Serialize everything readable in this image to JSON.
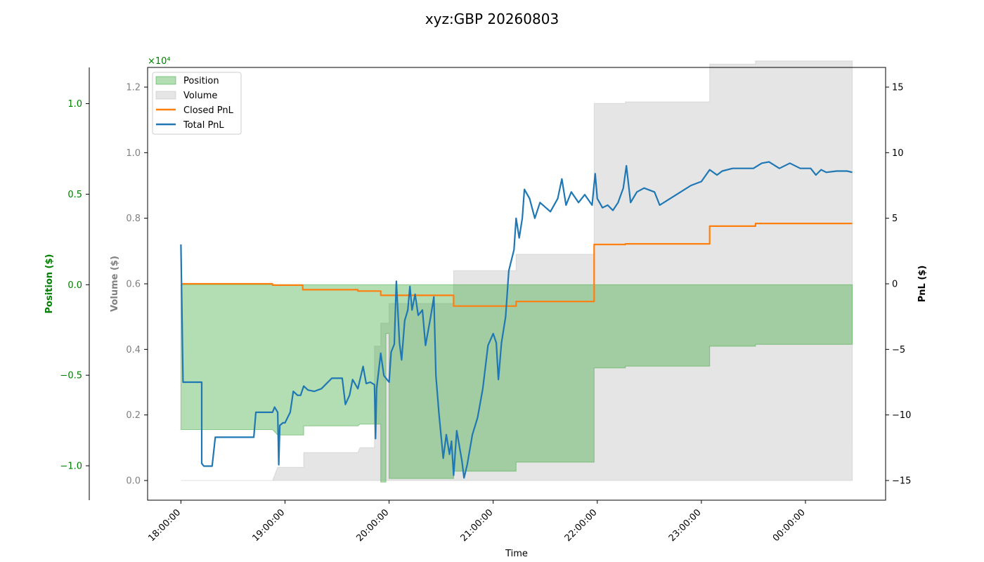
{
  "chart_data": {
    "type": "area",
    "title": "xyz:GBP 20260803",
    "xlabel": "Time",
    "x_ticks": [
      "18:00:00",
      "19:00:00",
      "20:00:00",
      "21:00:00",
      "22:00:00",
      "23:00:00",
      "00:00:00"
    ],
    "x_range_hours": [
      17.68,
      24.77
    ],
    "axes": {
      "position": {
        "label": "Position ($)",
        "range": [
          -1.19,
          1.2
        ],
        "ticks": [
          -1.0,
          -0.5,
          0.0,
          0.5,
          1.0
        ],
        "tick_labels": [
          "−1.0",
          "−0.5",
          "0.0",
          "0.5",
          "1.0"
        ],
        "color": "#008000"
      },
      "volume": {
        "label": "Volume ($)",
        "range": [
          -0.06,
          1.26
        ],
        "ticks": [
          0.0,
          0.2,
          0.4,
          0.6,
          0.8,
          1.0,
          1.2
        ],
        "tick_labels": [
          "0.0",
          "0.2",
          "0.4",
          "0.6",
          "0.8",
          "1.0",
          "1.2"
        ],
        "multiplier": "×10⁴",
        "color": "#808080"
      },
      "pnl": {
        "label": "PnL ($)",
        "range": [
          -16.5,
          16.5
        ],
        "ticks": [
          -15,
          -10,
          -5,
          0,
          5,
          10,
          15
        ],
        "tick_labels": [
          "−15",
          "−10",
          "−5",
          "0",
          "5",
          "10",
          "15"
        ],
        "color": "#000000"
      }
    },
    "legend": {
      "placement": "upper-left",
      "entries": [
        "Position",
        "Volume",
        "Closed PnL",
        "Total PnL"
      ]
    },
    "grid": false,
    "series": [
      {
        "name": "Position",
        "kind": "area",
        "axis": "position",
        "color": "#2ca02c",
        "points": [
          [
            18.0,
            -0.8
          ],
          [
            18.88,
            -0.8
          ],
          [
            18.93,
            -0.83
          ],
          [
            19.18,
            -0.83
          ],
          [
            19.18,
            -0.78
          ],
          [
            19.7,
            -0.78
          ],
          [
            19.72,
            -0.77
          ],
          [
            19.92,
            -0.77
          ],
          [
            19.92,
            -1.09
          ],
          [
            19.97,
            -1.09
          ],
          [
            19.97,
            -0.27
          ],
          [
            20.0,
            -0.27
          ],
          [
            20.0,
            -1.07
          ],
          [
            20.42,
            -1.07
          ],
          [
            20.62,
            -1.07
          ],
          [
            20.62,
            -1.03
          ],
          [
            21.0,
            -1.03
          ],
          [
            21.22,
            -1.03
          ],
          [
            21.22,
            -0.98
          ],
          [
            21.97,
            -0.98
          ],
          [
            21.97,
            -0.46
          ],
          [
            22.27,
            -0.46
          ],
          [
            22.27,
            -0.45
          ],
          [
            23.08,
            -0.45
          ],
          [
            23.08,
            -0.34
          ],
          [
            23.52,
            -0.34
          ],
          [
            23.52,
            -0.33
          ],
          [
            24.45,
            -0.33
          ]
        ]
      },
      {
        "name": "Volume",
        "kind": "area",
        "axis": "volume",
        "color": "#bbbbbb",
        "points": [
          [
            18.0,
            0.0
          ],
          [
            18.88,
            0.0
          ],
          [
            18.93,
            0.04
          ],
          [
            19.18,
            0.04
          ],
          [
            19.18,
            0.085
          ],
          [
            19.7,
            0.085
          ],
          [
            19.72,
            0.1
          ],
          [
            19.86,
            0.1
          ],
          [
            19.86,
            0.41
          ],
          [
            19.92,
            0.41
          ],
          [
            19.92,
            0.48
          ],
          [
            20.0,
            0.48
          ],
          [
            20.0,
            0.54
          ],
          [
            20.42,
            0.54
          ],
          [
            20.62,
            0.54
          ],
          [
            20.62,
            0.64
          ],
          [
            21.22,
            0.64
          ],
          [
            21.22,
            0.69
          ],
          [
            21.97,
            0.69
          ],
          [
            21.97,
            1.15
          ],
          [
            22.27,
            1.15
          ],
          [
            22.27,
            1.155
          ],
          [
            23.08,
            1.155
          ],
          [
            23.08,
            1.27
          ],
          [
            23.52,
            1.27
          ],
          [
            23.52,
            1.28
          ],
          [
            24.45,
            1.28
          ]
        ]
      },
      {
        "name": "Closed PnL",
        "kind": "step-line",
        "axis": "pnl",
        "color": "#ff7f0e",
        "points": [
          [
            18.0,
            0.0
          ],
          [
            18.88,
            0.0
          ],
          [
            18.88,
            -0.1
          ],
          [
            19.17,
            -0.1
          ],
          [
            19.17,
            -0.45
          ],
          [
            19.7,
            -0.45
          ],
          [
            19.7,
            -0.55
          ],
          [
            19.92,
            -0.55
          ],
          [
            19.92,
            -0.88
          ],
          [
            20.62,
            -0.88
          ],
          [
            20.62,
            -1.7
          ],
          [
            21.22,
            -1.7
          ],
          [
            21.22,
            -1.35
          ],
          [
            21.97,
            -1.35
          ],
          [
            21.97,
            3.0
          ],
          [
            22.27,
            3.0
          ],
          [
            22.27,
            3.05
          ],
          [
            23.08,
            3.05
          ],
          [
            23.08,
            4.4
          ],
          [
            23.52,
            4.4
          ],
          [
            23.52,
            4.6
          ],
          [
            24.45,
            4.6
          ]
        ]
      },
      {
        "name": "Total PnL",
        "kind": "line",
        "axis": "pnl",
        "color": "#1f77b4",
        "points": [
          [
            18.0,
            3.0
          ],
          [
            18.02,
            -7.5
          ],
          [
            18.2,
            -7.5
          ],
          [
            18.2,
            -13.7
          ],
          [
            18.22,
            -13.9
          ],
          [
            18.3,
            -13.9
          ],
          [
            18.33,
            -11.7
          ],
          [
            18.7,
            -11.7
          ],
          [
            18.72,
            -9.8
          ],
          [
            18.88,
            -9.8
          ],
          [
            18.9,
            -9.4
          ],
          [
            18.93,
            -9.8
          ],
          [
            18.94,
            -13.8
          ],
          [
            18.95,
            -10.8
          ],
          [
            18.98,
            -10.6
          ],
          [
            19.0,
            -10.6
          ],
          [
            19.05,
            -9.8
          ],
          [
            19.08,
            -8.2
          ],
          [
            19.12,
            -8.5
          ],
          [
            19.15,
            -8.5
          ],
          [
            19.18,
            -7.8
          ],
          [
            19.22,
            -8.1
          ],
          [
            19.28,
            -8.2
          ],
          [
            19.35,
            -8.0
          ],
          [
            19.45,
            -7.2
          ],
          [
            19.55,
            -7.2
          ],
          [
            19.58,
            -9.2
          ],
          [
            19.62,
            -8.5
          ],
          [
            19.65,
            -7.3
          ],
          [
            19.7,
            -8.0
          ],
          [
            19.75,
            -6.3
          ],
          [
            19.78,
            -7.6
          ],
          [
            19.82,
            -7.5
          ],
          [
            19.86,
            -7.7
          ],
          [
            19.87,
            -11.8
          ],
          [
            19.88,
            -8.0
          ],
          [
            19.92,
            -5.3
          ],
          [
            19.95,
            -7.0
          ],
          [
            20.0,
            -7.5
          ],
          [
            20.02,
            -5.2
          ],
          [
            20.05,
            -4.6
          ],
          [
            20.07,
            0.2
          ],
          [
            20.1,
            -4.5
          ],
          [
            20.12,
            -5.8
          ],
          [
            20.15,
            -2.8
          ],
          [
            20.18,
            -2.0
          ],
          [
            20.2,
            -0.2
          ],
          [
            20.22,
            -2.0
          ],
          [
            20.25,
            -0.8
          ],
          [
            20.28,
            -2.4
          ],
          [
            20.32,
            -2.0
          ],
          [
            20.35,
            -4.7
          ],
          [
            20.4,
            -2.5
          ],
          [
            20.43,
            -1.0
          ],
          [
            20.45,
            -7.0
          ],
          [
            20.48,
            -10.0
          ],
          [
            20.52,
            -13.3
          ],
          [
            20.55,
            -11.5
          ],
          [
            20.58,
            -13.0
          ],
          [
            20.6,
            -12.0
          ],
          [
            20.62,
            -14.6
          ],
          [
            20.65,
            -11.2
          ],
          [
            20.7,
            -13.5
          ],
          [
            20.72,
            -14.8
          ],
          [
            20.75,
            -13.8
          ],
          [
            20.8,
            -11.5
          ],
          [
            20.85,
            -10.2
          ],
          [
            20.9,
            -8.0
          ],
          [
            20.95,
            -4.7
          ],
          [
            21.0,
            -3.8
          ],
          [
            21.03,
            -4.5
          ],
          [
            21.05,
            -7.3
          ],
          [
            21.08,
            -4.5
          ],
          [
            21.12,
            -2.5
          ],
          [
            21.15,
            1.0
          ],
          [
            21.2,
            2.6
          ],
          [
            21.22,
            5.0
          ],
          [
            21.25,
            3.5
          ],
          [
            21.28,
            5.0
          ],
          [
            21.3,
            7.2
          ],
          [
            21.35,
            6.5
          ],
          [
            21.4,
            5.0
          ],
          [
            21.45,
            6.2
          ],
          [
            21.55,
            5.5
          ],
          [
            21.62,
            6.5
          ],
          [
            21.66,
            8.0
          ],
          [
            21.7,
            6.0
          ],
          [
            21.75,
            7.0
          ],
          [
            21.82,
            6.2
          ],
          [
            21.88,
            6.8
          ],
          [
            21.95,
            6.0
          ],
          [
            21.98,
            8.4
          ],
          [
            22.0,
            6.5
          ],
          [
            22.05,
            5.8
          ],
          [
            22.1,
            6.0
          ],
          [
            22.15,
            5.6
          ],
          [
            22.2,
            6.2
          ],
          [
            22.25,
            7.3
          ],
          [
            22.28,
            9.0
          ],
          [
            22.32,
            6.2
          ],
          [
            22.38,
            7.0
          ],
          [
            22.45,
            7.3
          ],
          [
            22.55,
            7.0
          ],
          [
            22.6,
            6.0
          ],
          [
            22.7,
            6.5
          ],
          [
            22.8,
            7.0
          ],
          [
            22.9,
            7.5
          ],
          [
            23.0,
            7.8
          ],
          [
            23.08,
            8.7
          ],
          [
            23.15,
            8.3
          ],
          [
            23.2,
            8.6
          ],
          [
            23.3,
            8.8
          ],
          [
            23.4,
            8.8
          ],
          [
            23.5,
            8.8
          ],
          [
            23.58,
            9.2
          ],
          [
            23.65,
            9.3
          ],
          [
            23.75,
            8.8
          ],
          [
            23.85,
            9.2
          ],
          [
            23.95,
            8.8
          ],
          [
            24.05,
            8.8
          ],
          [
            24.1,
            8.3
          ],
          [
            24.15,
            8.7
          ],
          [
            24.2,
            8.5
          ],
          [
            24.3,
            8.6
          ],
          [
            24.4,
            8.6
          ],
          [
            24.45,
            8.5
          ]
        ]
      }
    ]
  }
}
